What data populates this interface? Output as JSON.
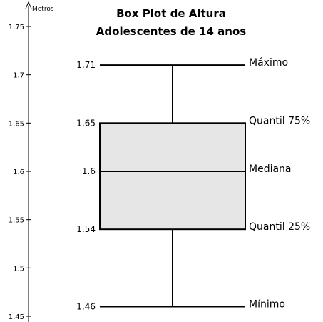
{
  "chart_data": {
    "type": "box",
    "title": "Box Plot de Altura",
    "subtitle": "Adolescentes de 14 anos",
    "ylabel": "Metros",
    "ylim": [
      1.45,
      1.75
    ],
    "yticks": [
      1.45,
      1.5,
      1.55,
      1.6,
      1.65,
      1.7,
      1.75
    ],
    "ytick_labels": [
      "1.45",
      "1.5",
      "1.55",
      "1.6",
      "1.65",
      "1.7",
      "1.75"
    ],
    "grid": false,
    "stats": {
      "min": 1.46,
      "q1": 1.54,
      "median": 1.6,
      "q3": 1.65,
      "max": 1.71
    },
    "value_labels": {
      "min": "1.46",
      "q1": "1.54",
      "median": "1.6",
      "q3": "1.65",
      "max": "1.71"
    },
    "annotations": {
      "min": "Mínimo",
      "q1": "Quantil 25%",
      "median": "Mediana",
      "q3": "Quantil 75%",
      "max": "Máximo"
    },
    "colors": {
      "box_fill": "#e6e6e6",
      "stroke": "#000000"
    }
  }
}
